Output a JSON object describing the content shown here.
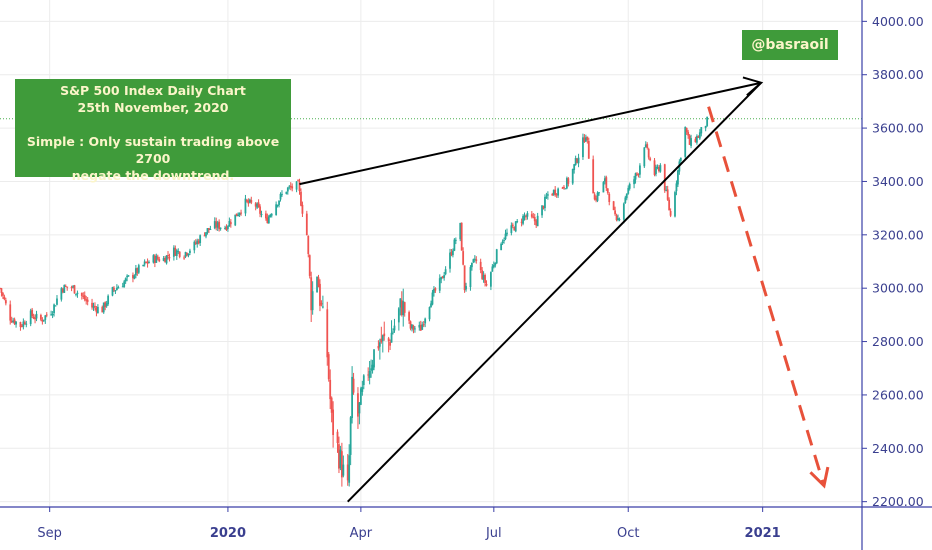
{
  "chart_data": {
    "type": "candlestick",
    "title_box": {
      "line1": "S&P 500 Index Daily Chart",
      "line2": "25th November, 2020",
      "line3": "Simple : Only sustain trading above 2700",
      "line4": "negate the downtrend."
    },
    "watermark": "@basraoil",
    "y_axis": {
      "ylim": [
        2180,
        4080
      ],
      "ticks": [
        {
          "value": 2200,
          "label": "2200.00"
        },
        {
          "value": 2400,
          "label": "2400.00"
        },
        {
          "value": 2600,
          "label": "2600.00"
        },
        {
          "value": 2800,
          "label": "2800.00"
        },
        {
          "value": 3000,
          "label": "3000.00"
        },
        {
          "value": 3200,
          "label": "3200.00"
        },
        {
          "value": 3400,
          "label": "3400.00"
        },
        {
          "value": 3600,
          "label": "3600.00"
        },
        {
          "value": 3800,
          "label": "3800.00"
        },
        {
          "value": 4000,
          "label": "4000.00"
        }
      ]
    },
    "x_axis": {
      "xlim": [
        "2019-07-29",
        "2021-03-10"
      ],
      "ticks": [
        {
          "date": "2019-09-01",
          "label": "Sep",
          "bold": false
        },
        {
          "date": "2020-01-01",
          "label": "2020",
          "bold": true
        },
        {
          "date": "2020-04-01",
          "label": "Apr",
          "bold": false
        },
        {
          "date": "2020-07-01",
          "label": "Jul",
          "bold": false
        },
        {
          "date": "2020-10-01",
          "label": "Oct",
          "bold": false
        },
        {
          "date": "2021-01-01",
          "label": "2021",
          "bold": true
        }
      ]
    },
    "current_price_level": 3635,
    "price_path": [
      [
        "2019-07-29",
        3000
      ],
      [
        "2019-08-05",
        2890
      ],
      [
        "2019-08-12",
        2860
      ],
      [
        "2019-08-19",
        2900
      ],
      [
        "2019-08-26",
        2880
      ],
      [
        "2019-09-03",
        2920
      ],
      [
        "2019-09-09",
        3000
      ],
      [
        "2019-09-16",
        3005
      ],
      [
        "2019-09-23",
        2970
      ],
      [
        "2019-09-30",
        2930
      ],
      [
        "2019-10-07",
        2920
      ],
      [
        "2019-10-14",
        2990
      ],
      [
        "2019-10-21",
        3020
      ],
      [
        "2019-10-28",
        3050
      ],
      [
        "2019-11-04",
        3085
      ],
      [
        "2019-11-11",
        3110
      ],
      [
        "2019-11-18",
        3110
      ],
      [
        "2019-11-25",
        3140
      ],
      [
        "2019-12-02",
        3130
      ],
      [
        "2019-12-09",
        3160
      ],
      [
        "2019-12-16",
        3210
      ],
      [
        "2019-12-23",
        3235
      ],
      [
        "2019-12-30",
        3230
      ],
      [
        "2020-01-06",
        3270
      ],
      [
        "2020-01-13",
        3320
      ],
      [
        "2020-01-20",
        3310
      ],
      [
        "2020-01-27",
        3250
      ],
      [
        "2020-02-03",
        3320
      ],
      [
        "2020-02-10",
        3370
      ],
      [
        "2020-02-18",
        3385
      ],
      [
        "2020-02-24",
        3200
      ],
      [
        "2020-02-27",
        2960
      ],
      [
        "2020-03-02",
        3050
      ],
      [
        "2020-03-09",
        2750
      ],
      [
        "2020-03-12",
        2500
      ],
      [
        "2020-03-16",
        2400
      ],
      [
        "2020-03-23",
        2240
      ],
      [
        "2020-03-26",
        2620
      ],
      [
        "2020-03-30",
        2520
      ],
      [
        "2020-04-06",
        2700
      ],
      [
        "2020-04-13",
        2800
      ],
      [
        "2020-04-20",
        2800
      ],
      [
        "2020-04-29",
        2940
      ],
      [
        "2020-05-05",
        2850
      ],
      [
        "2020-05-12",
        2850
      ],
      [
        "2020-05-19",
        2960
      ],
      [
        "2020-05-26",
        3030
      ],
      [
        "2020-06-08",
        3230
      ],
      [
        "2020-06-11",
        3000
      ],
      [
        "2020-06-18",
        3110
      ],
      [
        "2020-06-26",
        3010
      ],
      [
        "2020-07-06",
        3180
      ],
      [
        "2020-07-13",
        3220
      ],
      [
        "2020-07-22",
        3270
      ],
      [
        "2020-07-30",
        3250
      ],
      [
        "2020-08-07",
        3350
      ],
      [
        "2020-08-14",
        3370
      ],
      [
        "2020-08-21",
        3400
      ],
      [
        "2020-08-28",
        3500
      ],
      [
        "2020-09-02",
        3580
      ],
      [
        "2020-09-08",
        3330
      ],
      [
        "2020-09-15",
        3400
      ],
      [
        "2020-09-23",
        3240
      ],
      [
        "2020-09-30",
        3360
      ],
      [
        "2020-10-08",
        3440
      ],
      [
        "2020-10-12",
        3540
      ],
      [
        "2020-10-19",
        3430
      ],
      [
        "2020-10-23",
        3460
      ],
      [
        "2020-10-30",
        3270
      ],
      [
        "2020-11-04",
        3440
      ],
      [
        "2020-11-09",
        3600
      ],
      [
        "2020-11-12",
        3540
      ],
      [
        "2020-11-18",
        3570
      ],
      [
        "2020-11-25",
        3635
      ]
    ],
    "trendlines": [
      {
        "name": "upper",
        "from": [
          "2020-02-19",
          3390
        ],
        "to": [
          "2020-12-31",
          3770
        ],
        "style": "solid",
        "color": "#000000",
        "arrow": true
      },
      {
        "name": "lower",
        "from": [
          "2020-03-23",
          2200
        ],
        "to": [
          "2020-12-31",
          3770
        ],
        "style": "solid",
        "color": "#000000",
        "arrow": false
      },
      {
        "name": "projection",
        "from": [
          "2020-11-25",
          3680
        ],
        "to": [
          "2021-02-12",
          2260
        ],
        "style": "dashed",
        "color": "#e8513a",
        "arrow": true
      }
    ]
  }
}
